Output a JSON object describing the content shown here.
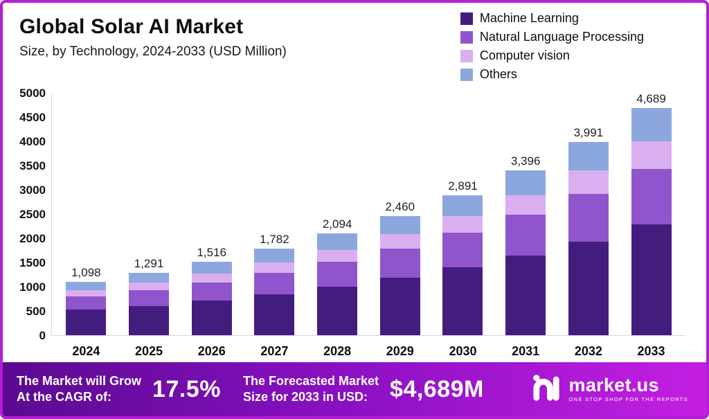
{
  "header": {
    "title": "Global Solar AI Market",
    "subtitle": "Size, by Technology, 2024-2033 (USD Million)"
  },
  "chart_data": {
    "type": "bar",
    "stacked": true,
    "title": "Global Solar AI Market",
    "subtitle": "Size, by Technology, 2024-2033 (USD Million)",
    "xlabel": "",
    "ylabel": "USD Million",
    "ylim": [
      0,
      5000
    ],
    "yticks": [
      "0",
      "500",
      "1000",
      "1500",
      "2000",
      "2500",
      "3000",
      "3500",
      "4000",
      "4500",
      "5000"
    ],
    "grid": false,
    "legend_position": "top-right",
    "categories": [
      "2024",
      "2025",
      "2026",
      "2027",
      "2028",
      "2029",
      "2030",
      "2031",
      "2032",
      "2033"
    ],
    "series": [
      {
        "name": "Machine Learning",
        "color": "#431d7e",
        "values": [
          530,
          600,
          720,
          850,
          1000,
          1180,
          1400,
          1650,
          1930,
          2280
        ]
      },
      {
        "name": "Natural Language Processing",
        "color": "#9055cc",
        "values": [
          270,
          330,
          370,
          440,
          510,
          600,
          710,
          830,
          990,
          1150
        ]
      },
      {
        "name": "Computer vision",
        "color": "#d9aff0",
        "values": [
          130,
          155,
          185,
          215,
          250,
          300,
          350,
          410,
          480,
          570
        ]
      },
      {
        "name": "Others",
        "color": "#8ca7de",
        "values": [
          168,
          206,
          241,
          277,
          334,
          380,
          431,
          506,
          591,
          689
        ]
      }
    ],
    "totals": [
      1098,
      1291,
      1516,
      1782,
      2094,
      2460,
      2891,
      3396,
      3991,
      4689
    ],
    "total_labels": [
      "1,098",
      "1,291",
      "1,516",
      "1,782",
      "2,094",
      "2,460",
      "2,891",
      "3,396",
      "3,991",
      "4,689"
    ]
  },
  "footer": {
    "cagr_label_line1": "The Market will Grow",
    "cagr_label_line2": "At the CAGR of:",
    "cagr_value": "17.5%",
    "forecast_label_line1": "The Forecasted Market",
    "forecast_label_line2": "Size for 2033 in USD:",
    "forecast_value": "$4,689M",
    "brand": {
      "name": "market.us",
      "tagline": "ONE STOP SHOP FOR THE REPORTS"
    }
  },
  "colors": {
    "frame_border": "#b21ed3",
    "banner_gradient_start": "#5a0a90",
    "banner_gradient_end": "#c31fe2"
  }
}
